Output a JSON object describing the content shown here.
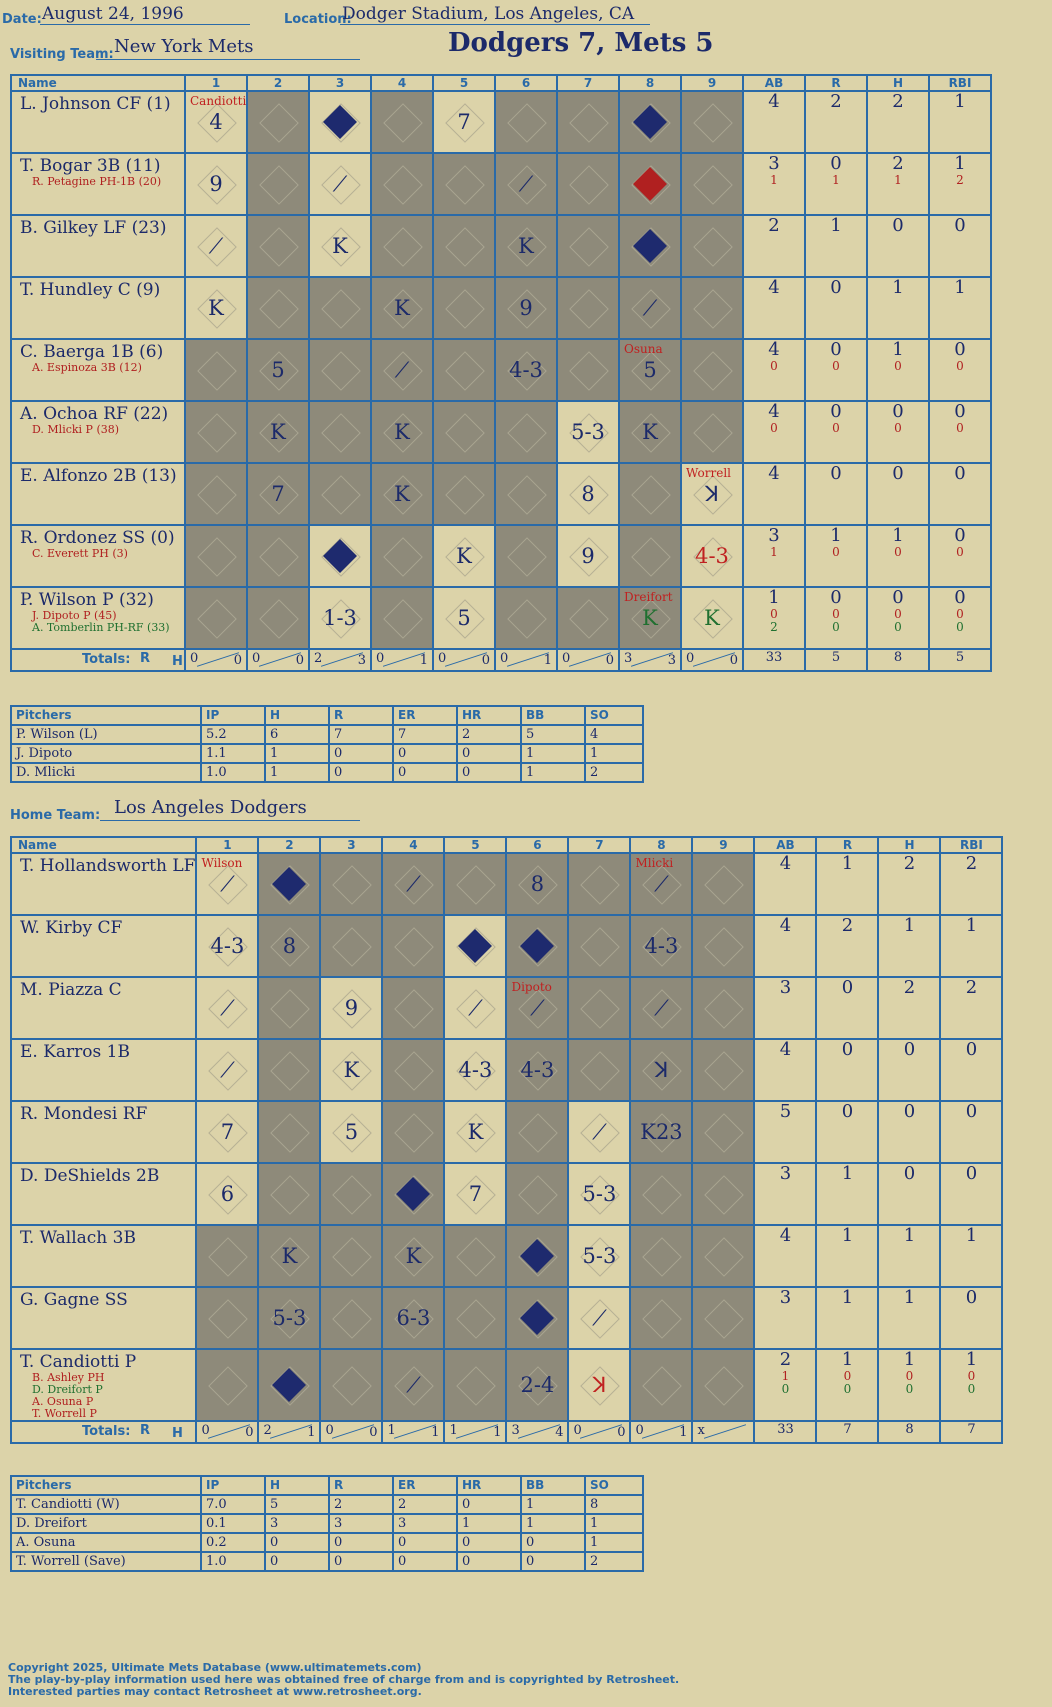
{
  "header": {
    "date_label": "Date:",
    "date": "August 24, 1996",
    "location_label": "Location:",
    "location": "Dodger Stadium, Los Angeles, CA",
    "visiting_label": "Visiting Team:",
    "visiting_team": "New York Mets",
    "result": "Dodgers 7, Mets 5",
    "home_label": "Home Team:",
    "home_team": "Los Angeles Dodgers"
  },
  "columns": {
    "name": "Name",
    "innings": [
      "1",
      "2",
      "3",
      "4",
      "5",
      "6",
      "7",
      "8",
      "9"
    ],
    "stats": [
      "AB",
      "R",
      "H",
      "RBI"
    ],
    "totals_label": "Totals:",
    "r_label": "R",
    "h_label": "H"
  },
  "visitors": {
    "rows": [
      {
        "name": "L. Johnson CF (1)",
        "subs": [],
        "cells": [
          {
            "t": "4",
            "pre": "Candiotti"
          },
          {},
          {
            "run": 1
          },
          {},
          {
            "t": "7"
          },
          {},
          {},
          {
            "run": 1
          },
          {}
        ],
        "stats": [
          "4",
          "2",
          "2",
          "1"
        ],
        "stats2": []
      },
      {
        "name": "T. Bogar 3B (11)",
        "subs": [
          {
            "t": "R. Petagine PH-1B (20)"
          }
        ],
        "cells": [
          {
            "t": "9"
          },
          {},
          {
            "t": "⟋"
          },
          {},
          {},
          {
            "t": "⟋"
          },
          {},
          {
            "run": 2
          },
          {}
        ],
        "stats": [
          "3",
          "0",
          "2",
          "1"
        ],
        "stats2": [
          "1",
          "1",
          "1",
          "2"
        ]
      },
      {
        "name": "B. Gilkey LF (23)",
        "subs": [],
        "cells": [
          {
            "t": "⟋"
          },
          {},
          {
            "t": "K"
          },
          {},
          {},
          {
            "t": "K"
          },
          {},
          {
            "run": 1
          },
          {}
        ],
        "stats": [
          "2",
          "1",
          "0",
          "0"
        ],
        "stats2": []
      },
      {
        "name": "T. Hundley C (9)",
        "subs": [],
        "cells": [
          {
            "t": "K"
          },
          {},
          {},
          {
            "t": "K"
          },
          {},
          {
            "t": "9"
          },
          {},
          {
            "t": "⟋"
          },
          {}
        ],
        "stats": [
          "4",
          "0",
          "1",
          "1"
        ],
        "stats2": []
      },
      {
        "name": "C. Baerga 1B (6)",
        "subs": [
          {
            "t": "A. Espinoza 3B (12)"
          }
        ],
        "cells": [
          {},
          {
            "t": "5"
          },
          {},
          {
            "t": "⟋"
          },
          {},
          {
            "t": "4-3"
          },
          {},
          {
            "t": "5",
            "pre": "Osuna"
          },
          {}
        ],
        "stats": [
          "4",
          "0",
          "1",
          "0"
        ],
        "stats2": [
          "0",
          "0",
          "0",
          "0"
        ]
      },
      {
        "name": "A. Ochoa RF (22)",
        "subs": [
          {
            "t": "D. Mlicki P (38)"
          }
        ],
        "cells": [
          {},
          {
            "t": "K"
          },
          {},
          {
            "t": "K"
          },
          {},
          {},
          {
            "t": "5-3"
          },
          {
            "t": "K"
          },
          {}
        ],
        "stats": [
          "4",
          "0",
          "0",
          "0"
        ],
        "stats2": [
          "0",
          "0",
          "0",
          "0"
        ]
      },
      {
        "name": "E. Alfonzo 2B (13)",
        "subs": [],
        "cells": [
          {},
          {
            "t": "7"
          },
          {},
          {
            "t": "K"
          },
          {},
          {},
          {
            "t": "8"
          },
          {},
          {
            "t": "ꓘ",
            "pre": "Worrell"
          }
        ],
        "stats": [
          "4",
          "0",
          "0",
          "0"
        ],
        "stats2": []
      },
      {
        "name": "R. Ordonez SS (0)",
        "subs": [
          {
            "t": "C. Everett PH (3)"
          }
        ],
        "cells": [
          {},
          {},
          {
            "run": 1
          },
          {},
          {
            "t": "K"
          },
          {},
          {
            "t": "9"
          },
          {},
          {
            "t": "4-3",
            "c": "red"
          }
        ],
        "stats": [
          "3",
          "1",
          "1",
          "0"
        ],
        "stats2": [
          "1",
          "0",
          "0",
          "0"
        ]
      },
      {
        "name": "P. Wilson P (32)",
        "subs": [
          {
            "t": "J. Dipoto P (45)"
          },
          {
            "t": "A. Tomberlin PH-RF (33)",
            "g": 1
          }
        ],
        "cells": [
          {},
          {},
          {
            "t": "1-3"
          },
          {},
          {
            "t": "5"
          },
          {},
          {},
          {
            "t": "K",
            "c": "green",
            "pre": "Dreifort"
          },
          {
            "t": "K",
            "c": "green"
          }
        ],
        "stats": [
          "1",
          "0",
          "0",
          "0"
        ],
        "stats2": [
          "0",
          "0",
          "0",
          "0"
        ],
        "stats3": [
          "2",
          "0",
          "0",
          "0"
        ]
      }
    ],
    "totals": [
      [
        "0",
        "0"
      ],
      [
        "0",
        "0"
      ],
      [
        "2",
        "3"
      ],
      [
        "0",
        "1"
      ],
      [
        "0",
        "0"
      ],
      [
        "0",
        "1"
      ],
      [
        "0",
        "0"
      ],
      [
        "3",
        "3"
      ],
      [
        "0",
        "0"
      ]
    ],
    "total_stats": [
      "33",
      "5",
      "8",
      "5"
    ],
    "pitchers_label": "Pitchers",
    "pitch_cols": [
      "IP",
      "H",
      "R",
      "ER",
      "HR",
      "BB",
      "SO"
    ],
    "pitchers": [
      [
        "P. Wilson (L)",
        "5.2",
        "6",
        "7",
        "7",
        "2",
        "5",
        "4"
      ],
      [
        "J. Dipoto",
        "1.1",
        "1",
        "0",
        "0",
        "0",
        "1",
        "1"
      ],
      [
        "D. Mlicki",
        "1.0",
        "1",
        "0",
        "0",
        "0",
        "1",
        "2"
      ]
    ]
  },
  "home": {
    "rows": [
      {
        "name": "T. Hollandsworth LF",
        "subs": [],
        "cells": [
          {
            "t": "⟋",
            "pre": "Wilson"
          },
          {
            "run": 1
          },
          {},
          {
            "t": "⟋"
          },
          {},
          {
            "t": "8"
          },
          {},
          {
            "t": "⟋",
            "pre": "Mlicki"
          },
          {}
        ],
        "stats": [
          "4",
          "1",
          "2",
          "2"
        ],
        "stats2": []
      },
      {
        "name": "W. Kirby CF",
        "subs": [],
        "cells": [
          {
            "t": "4-3"
          },
          {
            "t": "8"
          },
          {},
          {},
          {
            "run": 1
          },
          {
            "run": 1
          },
          {},
          {
            "t": "4-3"
          },
          {}
        ],
        "stats": [
          "4",
          "2",
          "1",
          "1"
        ],
        "stats2": []
      },
      {
        "name": "M. Piazza C",
        "subs": [],
        "cells": [
          {
            "t": "⟋"
          },
          {},
          {
            "t": "9"
          },
          {},
          {
            "t": "⟋"
          },
          {
            "t": "⟋",
            "pre": "Dipoto"
          },
          {},
          {
            "t": "⟋"
          },
          {}
        ],
        "stats": [
          "3",
          "0",
          "2",
          "2"
        ],
        "stats2": []
      },
      {
        "name": "E. Karros 1B",
        "subs": [],
        "cells": [
          {
            "t": "⟋"
          },
          {},
          {
            "t": "K"
          },
          {},
          {
            "t": "4-3"
          },
          {
            "t": "4-3"
          },
          {},
          {
            "t": "ꓘ"
          },
          {}
        ],
        "stats": [
          "4",
          "0",
          "0",
          "0"
        ],
        "stats2": []
      },
      {
        "name": "R. Mondesi RF",
        "subs": [],
        "cells": [
          {
            "t": "7"
          },
          {},
          {
            "t": "5"
          },
          {},
          {
            "t": "K"
          },
          {},
          {
            "t": "⟋"
          },
          {
            "t": "K23"
          },
          {}
        ],
        "stats": [
          "5",
          "0",
          "0",
          "0"
        ],
        "stats2": []
      },
      {
        "name": "D. DeShields 2B",
        "subs": [],
        "cells": [
          {
            "t": "6"
          },
          {},
          {},
          {
            "run": 1
          },
          {
            "t": "7"
          },
          {},
          {
            "t": "5-3"
          },
          {},
          {}
        ],
        "stats": [
          "3",
          "1",
          "0",
          "0"
        ],
        "stats2": []
      },
      {
        "name": "T. Wallach 3B",
        "subs": [],
        "cells": [
          {},
          {
            "t": "K"
          },
          {},
          {
            "t": "K"
          },
          {},
          {
            "run": 1
          },
          {
            "t": "5-3"
          },
          {},
          {}
        ],
        "stats": [
          "4",
          "1",
          "1",
          "1"
        ],
        "stats2": []
      },
      {
        "name": "G. Gagne SS",
        "subs": [],
        "cells": [
          {},
          {
            "t": "5-3"
          },
          {},
          {
            "t": "6-3"
          },
          {},
          {
            "run": 1
          },
          {
            "t": "⟋"
          },
          {},
          {}
        ],
        "stats": [
          "3",
          "1",
          "1",
          "0"
        ],
        "stats2": []
      },
      {
        "name": "T. Candiotti P",
        "subs": [
          {
            "t": "B. Ashley PH"
          },
          {
            "t": "D. Dreifort P",
            "g": 1
          },
          {
            "t": "A. Osuna P"
          },
          {
            "t": "T. Worrell P"
          }
        ],
        "cells": [
          {},
          {
            "run": 1
          },
          {},
          {
            "t": "⟋"
          },
          {},
          {
            "t": "2-4"
          },
          {
            "t": "ꓘ",
            "c": "red"
          },
          {},
          {}
        ],
        "stats": [
          "2",
          "1",
          "1",
          "1"
        ],
        "stats2": [
          "1",
          "0",
          "0",
          "0"
        ],
        "stats3": [
          "0",
          "0",
          "0",
          "0"
        ]
      }
    ],
    "totals": [
      [
        "0",
        "0"
      ],
      [
        "2",
        "1"
      ],
      [
        "0",
        "0"
      ],
      [
        "1",
        "1"
      ],
      [
        "1",
        "1"
      ],
      [
        "3",
        "4"
      ],
      [
        "0",
        "0"
      ],
      [
        "0",
        "1"
      ],
      [
        "x",
        ""
      ]
    ],
    "total_stats": [
      "33",
      "7",
      "8",
      "7"
    ],
    "pitchers_label": "Pitchers",
    "pitch_cols": [
      "IP",
      "H",
      "R",
      "ER",
      "HR",
      "BB",
      "SO"
    ],
    "pitchers": [
      [
        "T. Candiotti (W)",
        "7.0",
        "5",
        "2",
        "2",
        "0",
        "1",
        "8"
      ],
      [
        "D. Dreifort",
        "0.1",
        "3",
        "3",
        "3",
        "1",
        "1",
        "1"
      ],
      [
        "A. Osuna",
        "0.2",
        "0",
        "0",
        "0",
        "0",
        "0",
        "1"
      ],
      [
        "T. Worrell (Save)",
        "1.0",
        "0",
        "0",
        "0",
        "0",
        "0",
        "2"
      ]
    ]
  },
  "footer": {
    "line1": "Copyright 2025, Ultimate Mets Database (www.ultimatemets.com)",
    "line2": "The play-by-play information used here was obtained free of charge from and is copyrighted by Retrosheet.",
    "line3": "Interested parties may contact Retrosheet at www.retrosheet.org."
  }
}
